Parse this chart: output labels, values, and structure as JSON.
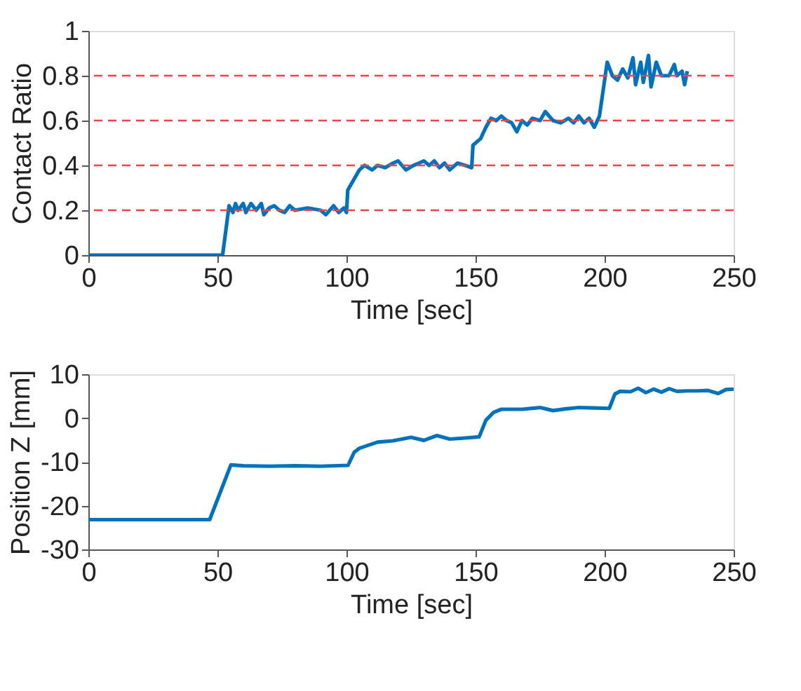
{
  "chart_data": [
    {
      "type": "line",
      "xlabel": "Time [sec]",
      "ylabel": "Contact Ratio",
      "xlim": [
        0,
        250
      ],
      "xticks": [
        0,
        50,
        100,
        150,
        200,
        250
      ],
      "ylim": [
        0,
        1
      ],
      "yticks": [
        0,
        0.2,
        0.4,
        0.6,
        0.8,
        1
      ],
      "grid": false,
      "line_style": "solid",
      "x": [
        0,
        50,
        52,
        54.5,
        56,
        57,
        58,
        60,
        61,
        63,
        65,
        67,
        68,
        70,
        72,
        74,
        76,
        78,
        80,
        85,
        90,
        92,
        95,
        97,
        99,
        100,
        100.5,
        103,
        105,
        107,
        110,
        112,
        115,
        118,
        120,
        123,
        126,
        128,
        130,
        132,
        134,
        136,
        138,
        140,
        143,
        146,
        148.5,
        149,
        152,
        154,
        156,
        158,
        160,
        162,
        164,
        166,
        168,
        170,
        172,
        175,
        177,
        180,
        183,
        186,
        188,
        190,
        192,
        194,
        196,
        198,
        200,
        201,
        203,
        205,
        207,
        209,
        211,
        212,
        214,
        215,
        217,
        218,
        220,
        222,
        225,
        227,
        228,
        230,
        231,
        232
      ],
      "series": [
        {
          "color": "#0072bd",
          "values": [
            0,
            0,
            0,
            0.22,
            0.19,
            0.23,
            0.2,
            0.23,
            0.19,
            0.23,
            0.2,
            0.23,
            0.18,
            0.21,
            0.22,
            0.2,
            0.19,
            0.22,
            0.2,
            0.21,
            0.2,
            0.18,
            0.22,
            0.19,
            0.21,
            0.19,
            0.29,
            0.34,
            0.38,
            0.4,
            0.38,
            0.4,
            0.39,
            0.41,
            0.42,
            0.38,
            0.4,
            0.41,
            0.42,
            0.4,
            0.42,
            0.39,
            0.41,
            0.38,
            0.41,
            0.4,
            0.39,
            0.49,
            0.52,
            0.57,
            0.61,
            0.6,
            0.62,
            0.6,
            0.59,
            0.55,
            0.6,
            0.58,
            0.61,
            0.6,
            0.64,
            0.6,
            0.59,
            0.61,
            0.59,
            0.62,
            0.59,
            0.61,
            0.57,
            0.62,
            0.78,
            0.86,
            0.8,
            0.78,
            0.83,
            0.79,
            0.88,
            0.76,
            0.86,
            0.77,
            0.89,
            0.75,
            0.86,
            0.8,
            0.8,
            0.85,
            0.8,
            0.82,
            0.76,
            0.82
          ]
        }
      ],
      "ref_lines": [
        {
          "axis": "y",
          "value": 0.2,
          "color": "#e8474b",
          "line_style": "dashed"
        },
        {
          "axis": "y",
          "value": 0.4,
          "color": "#e8474b",
          "line_style": "dashed"
        },
        {
          "axis": "y",
          "value": 0.6,
          "color": "#e8474b",
          "line_style": "dashed"
        },
        {
          "axis": "y",
          "value": 0.8,
          "color": "#e8474b",
          "line_style": "dashed"
        }
      ]
    },
    {
      "type": "line",
      "xlabel": "Time [sec]",
      "ylabel": "Position Z [mm]",
      "xlim": [
        0,
        250
      ],
      "xticks": [
        0,
        50,
        100,
        150,
        200,
        250
      ],
      "ylim": [
        -30,
        10
      ],
      "yticks": [
        -30,
        -20,
        -10,
        0,
        10
      ],
      "grid": false,
      "line_style": "solid",
      "x": [
        0,
        47,
        55.2,
        60,
        70,
        80,
        90,
        100.6,
        103,
        105,
        112,
        118,
        125,
        130,
        135,
        140,
        145,
        151.4,
        154,
        157,
        160,
        168,
        175,
        180,
        185,
        190,
        196,
        201.8,
        204,
        206,
        210,
        213,
        216,
        219,
        222,
        225,
        228,
        232,
        236,
        240,
        244,
        247,
        250
      ],
      "series": [
        {
          "color": "#0072bd",
          "values": [
            -23.2,
            -23.2,
            -10.7,
            -10.9,
            -11,
            -10.9,
            -11,
            -10.8,
            -7.8,
            -6.9,
            -5.5,
            -5.2,
            -4.4,
            -5.1,
            -4,
            -4.8,
            -4.6,
            -4.3,
            -0.5,
            1.3,
            2,
            2,
            2.4,
            1.7,
            2.1,
            2.4,
            2.3,
            2.2,
            5.5,
            6.1,
            6,
            6.8,
            5.8,
            6.6,
            5.9,
            6.7,
            6.1,
            6.2,
            6.2,
            6.3,
            5.6,
            6.5,
            6.6
          ]
        }
      ]
    }
  ]
}
